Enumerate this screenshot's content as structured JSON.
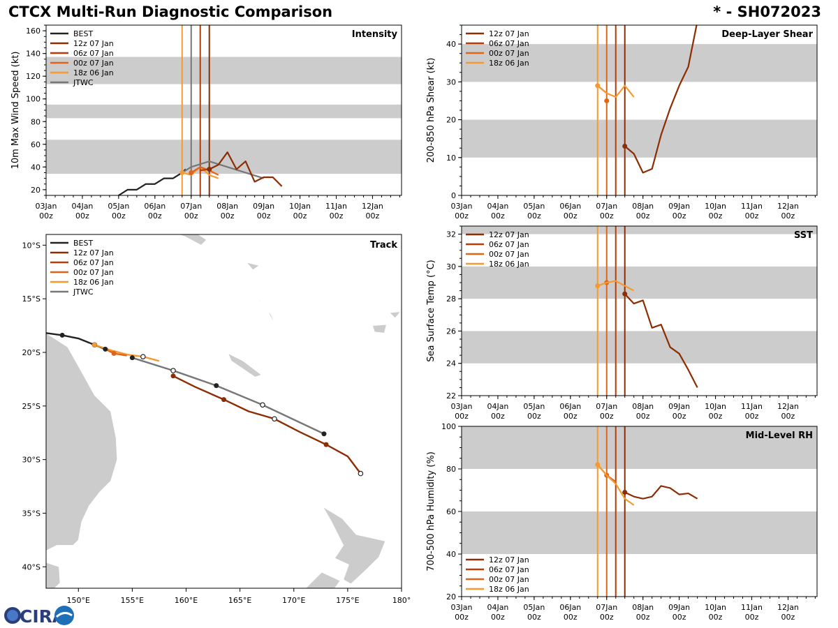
{
  "header": {
    "title": "CTCX Multi-Run Diagnostic Comparison",
    "storm_id": "* - SH072023"
  },
  "colors": {
    "BEST": "#222222",
    "12z 07 Jan": "#8c2d04",
    "06z 07 Jan": "#b83c05",
    "00z 07 Jan": "#e0641a",
    "18z 06 Jan": "#f59a30",
    "JTWC": "#777777",
    "band": "#cccccc",
    "land": "#cccccc"
  },
  "time_axis": {
    "domain": [
      0,
      9.8
    ],
    "ticks": [
      {
        "day": 0,
        "label": "03Jan",
        "sub": "00z"
      },
      {
        "day": 1,
        "label": "04Jan",
        "sub": "00z"
      },
      {
        "day": 2,
        "label": "05Jan",
        "sub": "00z"
      },
      {
        "day": 3,
        "label": "06Jan",
        "sub": "00z"
      },
      {
        "day": 4,
        "label": "07Jan",
        "sub": "00z"
      },
      {
        "day": 5,
        "label": "08Jan",
        "sub": "00z"
      },
      {
        "day": 6,
        "label": "09Jan",
        "sub": "00z"
      },
      {
        "day": 7,
        "label": "10Jan",
        "sub": "00z"
      },
      {
        "day": 8,
        "label": "11Jan",
        "sub": "00z"
      },
      {
        "day": 9,
        "label": "12Jan",
        "sub": "00z"
      }
    ]
  },
  "chart_data": [
    {
      "id": "intensity",
      "type": "line",
      "title": "Intensity",
      "ylabel": "10m Max Wind Speed (kt)",
      "ylim": [
        15,
        165
      ],
      "yticks": [
        20,
        40,
        60,
        80,
        100,
        120,
        140,
        160
      ],
      "bands": [
        [
          34,
          64
        ],
        [
          83,
          95
        ],
        [
          113,
          137
        ]
      ],
      "init_lines": [
        {
          "run": "18z 06 Jan",
          "day": 3.75
        },
        {
          "run": "JTWC",
          "day": 4.0
        },
        {
          "run": "06z 07 Jan",
          "day": 4.25
        },
        {
          "run": "12z 07 Jan",
          "day": 4.5
        }
      ],
      "legend": [
        "BEST",
        "12z 07 Jan",
        "06z 07 Jan",
        "00z 07 Jan",
        "18z 06 Jan",
        "JTWC"
      ],
      "series": [
        {
          "name": "BEST",
          "x": [
            2.0,
            2.25,
            2.5,
            2.75,
            3.0,
            3.25,
            3.5,
            3.75,
            3.85
          ],
          "y": [
            15,
            20,
            20,
            25,
            25,
            30,
            30,
            35,
            38
          ]
        },
        {
          "name": "JTWC",
          "x": [
            3.75,
            4.0,
            4.5,
            5.0,
            5.5,
            6.0
          ],
          "y": [
            35,
            40,
            45,
            40,
            35,
            30
          ]
        },
        {
          "name": "18z 06 Jan",
          "x": [
            3.75,
            4.0,
            4.25,
            4.5,
            4.75
          ],
          "y": [
            35,
            33,
            40,
            33,
            30
          ],
          "marker": 0
        },
        {
          "name": "00z 07 Jan",
          "x": [
            4.0,
            4.25,
            4.5,
            4.75
          ],
          "y": [
            35,
            40,
            37,
            33
          ],
          "marker": 0
        },
        {
          "name": "06z 07 Jan",
          "x": [
            4.25,
            4.5
          ],
          "y": [
            37,
            38
          ],
          "marker": 1
        },
        {
          "name": "12z 07 Jan",
          "x": [
            4.5,
            4.75,
            5.0,
            5.25,
            5.5,
            5.75,
            6.0,
            6.25,
            6.5
          ],
          "y": [
            38,
            42,
            53,
            38,
            45,
            27,
            31,
            31,
            23
          ],
          "marker": 0
        }
      ]
    },
    {
      "id": "shear",
      "type": "line",
      "title": "Deep-Layer Shear",
      "ylabel": "200-850 hPa Shear (kt)",
      "ylim": [
        0,
        45
      ],
      "yticks": [
        0,
        10,
        20,
        30,
        40
      ],
      "bands": [
        [
          10,
          20
        ],
        [
          30,
          40
        ]
      ],
      "init_lines": [
        {
          "run": "18z 06 Jan",
          "day": 3.75
        },
        {
          "run": "00z 07 Jan",
          "day": 4.0
        },
        {
          "run": "06z 07 Jan",
          "day": 4.25
        },
        {
          "run": "12z 07 Jan",
          "day": 4.5
        }
      ],
      "legend": [
        "12z 07 Jan",
        "06z 07 Jan",
        "00z 07 Jan",
        "18z 06 Jan"
      ],
      "series": [
        {
          "name": "06z 07 Jan",
          "x": [
            3.75,
            4.0
          ],
          "y": [
            29,
            27
          ]
        },
        {
          "name": "00z 07 Jan",
          "x": [
            4.0
          ],
          "y": [
            25
          ],
          "marker": 0
        },
        {
          "name": "18z 06 Jan",
          "x": [
            3.75,
            4.0,
            4.25,
            4.5,
            4.75
          ],
          "y": [
            29,
            27,
            26,
            29,
            26
          ],
          "marker": 0
        },
        {
          "name": "12z 07 Jan",
          "x": [
            4.5,
            4.75,
            5.0,
            5.25,
            5.5,
            5.75,
            6.0,
            6.25,
            6.5
          ],
          "y": [
            13,
            11,
            6,
            7,
            16,
            23,
            29,
            34,
            46
          ],
          "marker": 0
        }
      ]
    },
    {
      "id": "sst",
      "type": "line",
      "title": "SST",
      "ylabel": "Sea Surface Temp (°C)",
      "ylim": [
        22,
        32.5
      ],
      "yticks": [
        22,
        24,
        26,
        28,
        30,
        32
      ],
      "bands": [
        [
          24,
          26
        ],
        [
          28,
          30
        ],
        [
          32,
          32.5
        ]
      ],
      "init_lines": [
        {
          "run": "18z 06 Jan",
          "day": 3.75
        },
        {
          "run": "00z 07 Jan",
          "day": 4.0
        },
        {
          "run": "06z 07 Jan",
          "day": 4.25
        },
        {
          "run": "12z 07 Jan",
          "day": 4.5
        }
      ],
      "legend": [
        "12z 07 Jan",
        "06z 07 Jan",
        "00z 07 Jan",
        "18z 06 Jan"
      ],
      "series": [
        {
          "name": "00z 07 Jan",
          "x": [
            4.0
          ],
          "y": [
            29.0
          ],
          "marker": 0
        },
        {
          "name": "18z 06 Jan",
          "x": [
            3.75,
            4.0,
            4.25,
            4.5,
            4.75
          ],
          "y": [
            28.8,
            29.0,
            29.1,
            28.8,
            28.5
          ],
          "marker": 0
        },
        {
          "name": "12z 07 Jan",
          "x": [
            4.5,
            4.75,
            5.0,
            5.25,
            5.5,
            5.75,
            6.0,
            6.25,
            6.5
          ],
          "y": [
            28.3,
            27.7,
            27.9,
            26.2,
            26.4,
            25.0,
            24.6,
            23.6,
            22.5
          ],
          "marker": 0
        }
      ]
    },
    {
      "id": "rh",
      "type": "line",
      "title": "Mid-Level RH",
      "ylabel": "700-500 hPa Humidity (%)",
      "ylim": [
        20,
        100
      ],
      "yticks": [
        20,
        40,
        60,
        80,
        100
      ],
      "bands": [
        [
          40,
          60
        ],
        [
          80,
          100
        ]
      ],
      "init_lines": [
        {
          "run": "18z 06 Jan",
          "day": 3.75
        },
        {
          "run": "00z 07 Jan",
          "day": 4.0
        },
        {
          "run": "06z 07 Jan",
          "day": 4.25
        },
        {
          "run": "12z 07 Jan",
          "day": 4.5
        }
      ],
      "legend": [
        "12z 07 Jan",
        "06z 07 Jan",
        "00z 07 Jan",
        "18z 06 Jan"
      ],
      "series": [
        {
          "name": "00z 07 Jan",
          "x": [
            3.75,
            4.0,
            4.25
          ],
          "y": [
            82,
            77,
            74
          ],
          "marker": 1
        },
        {
          "name": "18z 06 Jan",
          "x": [
            3.75,
            4.0,
            4.25,
            4.5,
            4.75
          ],
          "y": [
            82,
            77,
            73,
            66,
            63
          ],
          "marker": 0
        },
        {
          "name": "12z 07 Jan",
          "x": [
            4.5,
            4.75,
            5.0,
            5.25,
            5.5,
            5.75,
            6.0,
            6.25,
            6.5
          ],
          "y": [
            69,
            67,
            66,
            67,
            72,
            71,
            68,
            68.5,
            66
          ],
          "marker": 0
        }
      ]
    },
    {
      "id": "track",
      "type": "scatter",
      "title": "Track",
      "xlim": [
        147,
        180
      ],
      "ylim": [
        -42,
        -9
      ],
      "xticks": [
        150,
        155,
        160,
        165,
        170,
        175,
        180
      ],
      "xtick_labels": [
        "150°E",
        "155°E",
        "160°E",
        "165°E",
        "170°E",
        "175°E",
        "180°"
      ],
      "yticks": [
        -10,
        -15,
        -20,
        -25,
        -30,
        -35,
        -40
      ],
      "ytick_labels": [
        "10°S",
        "15°S",
        "20°S",
        "25°S",
        "30°S",
        "35°S",
        "40°S"
      ],
      "legend": [
        "BEST",
        "12z 07 Jan",
        "06z 07 Jan",
        "00z 07 Jan",
        "18z 06 Jan",
        "JTWC"
      ],
      "series": [
        {
          "name": "BEST",
          "lon": [
            147.0,
            148.5,
            150.0,
            151.5,
            152.5,
            153.5
          ],
          "lat": [
            -18.2,
            -18.4,
            -18.7,
            -19.3,
            -19.7,
            -20.1
          ],
          "dots": [
            1,
            4
          ],
          "open": [
            3
          ]
        },
        {
          "name": "18z 06 Jan",
          "lon": [
            151.5,
            153.0,
            154.5,
            156.0,
            157.5
          ],
          "lat": [
            -19.3,
            -19.8,
            -20.2,
            -20.4,
            -20.8
          ],
          "dots": [
            0
          ],
          "open": [
            3
          ]
        },
        {
          "name": "00z 07 Jan",
          "lon": [
            152.5,
            153.3,
            154.5
          ],
          "lat": [
            -19.7,
            -20.1,
            -20.3
          ],
          "dots": [
            1
          ]
        },
        {
          "name": "JTWC",
          "lon": [
            155.0,
            158.8,
            162.8,
            167.1,
            172.8
          ],
          "lat": [
            -20.5,
            -21.7,
            -23.1,
            -24.9,
            -27.6
          ],
          "dots": [
            0,
            2
          ],
          "open": [
            1,
            3
          ],
          "end": 4
        },
        {
          "name": "12z 07 Jan",
          "lon": [
            158.8,
            160.8,
            163.5,
            165.8,
            168.2,
            170.5,
            173.0,
            175.0,
            176.2
          ],
          "lat": [
            -22.2,
            -23.2,
            -24.4,
            -25.5,
            -26.2,
            -27.4,
            -28.6,
            -29.7,
            -31.3
          ],
          "dots": [
            0,
            2,
            6
          ],
          "open": [
            4,
            8
          ]
        }
      ]
    }
  ],
  "logo": {
    "text": "CIRA"
  }
}
